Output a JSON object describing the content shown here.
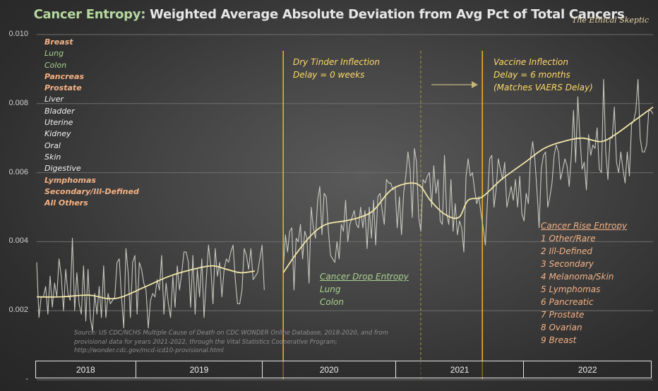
{
  "header": {
    "title_highlight": "Cancer Entropy:",
    "title_rest": " Weighted Average Absolute Deviation from Avg Pct of Total Cancers",
    "brand": "The Ethical Skeptic"
  },
  "legend": [
    {
      "label": "Breast",
      "style": "orange"
    },
    {
      "label": "Lung",
      "style": "green"
    },
    {
      "label": "Colon",
      "style": "green"
    },
    {
      "label": "Pancreas",
      "style": "orange"
    },
    {
      "label": "Prostate",
      "style": "orange"
    },
    {
      "label": "Liver",
      "style": "white"
    },
    {
      "label": "Bladder",
      "style": "white"
    },
    {
      "label": "Uterine",
      "style": "white"
    },
    {
      "label": "Kidney",
      "style": "white"
    },
    {
      "label": "Oral",
      "style": "white"
    },
    {
      "label": "Skin",
      "style": "white"
    },
    {
      "label": "Digestive",
      "style": "white"
    },
    {
      "label": "Lymphomas",
      "style": "orange"
    },
    {
      "label": "Secondary/Ill-Defined",
      "style": "orange"
    },
    {
      "label": "All Others",
      "style": "orange"
    }
  ],
  "annotations": {
    "dry_tinder": [
      "Dry Tinder Inflection",
      "Delay = 0 weeks"
    ],
    "vaccine": [
      "Vaccine Inflection",
      "Delay = 6 months",
      "(Matches VAERS Delay)"
    ],
    "drop_title": "Cancer Drop Entropy",
    "drop_items": [
      "Lung",
      "Colon"
    ],
    "rise_title": "Cancer Rise Entropy",
    "rise_items": [
      "1 Other/Rare",
      "2 Ill-Defined",
      "3 Secondary",
      "4 Melanoma/Skin",
      "5 Lymphomas",
      "6 Pancreatic",
      "7 Prostate",
      "8 Ovarian",
      "9 Breast"
    ],
    "source": [
      "Source: US CDC/NCHS Multiple Cause of Death on CDC WONDER Online Database, 2018-2020, and from",
      "provisional data for years 2021-2022, through the Vital Statistics Cooperative Program;",
      "http://wonder.cdc.gov/mcd-icd10-provisional.html"
    ]
  },
  "colors": {
    "weekly_line": "#c8c8c0",
    "trend_line": "#f3e7a8",
    "inflection_line": "#e8b21e",
    "dashed_line": "#a8984c",
    "arrow": "#c4b67c",
    "grid": "#6e6e6e"
  },
  "chart_data": {
    "type": "line",
    "title": "Cancer Entropy: Weighted Average Absolute Deviation from Avg Pct of Total Cancers",
    "xlabel": "",
    "ylabel": "",
    "ylim": [
      0,
      0.01
    ],
    "yticks": [
      "0.010",
      "0.008",
      "0.006",
      "0.004",
      "0.002",
      "-"
    ],
    "ytick_values": [
      0.01,
      0.008,
      0.006,
      0.004,
      0.002,
      0
    ],
    "grid": true,
    "x_unit": "week",
    "x_range_weeks": [
      0,
      260
    ],
    "year_bands": [
      {
        "label": "2018",
        "start_week": 0,
        "end_week": 42
      },
      {
        "label": "2019",
        "start_week": 42,
        "end_week": 96
      },
      {
        "label": "2020",
        "start_week": 96,
        "end_week": 152
      },
      {
        "label": "2021",
        "start_week": 152,
        "end_week": 206
      },
      {
        "label": "2022",
        "start_week": 206,
        "end_week": 260
      }
    ],
    "vertical_markers": [
      {
        "name": "Dry Tinder Inflection",
        "week": 104,
        "style": "solid"
      },
      {
        "name": "2021 start",
        "week": 162,
        "style": "dashed"
      },
      {
        "name": "Vaccine Inflection",
        "week": 188,
        "style": "solid"
      }
    ],
    "series": [
      {
        "name": "Weekly entropy",
        "segments": [
          {
            "start_week": 0,
            "values": [
              0.0034,
              0.0018,
              0.0024,
              0.0024,
              0.0027,
              0.0019,
              0.003,
              0.0021,
              0.0028,
              0.0024,
              0.0035,
              0.003,
              0.002,
              0.0032,
              0.0025,
              0.0023,
              0.0041,
              0.002,
              0.0031,
              0.0022,
              0.0019,
              0.0033,
              0.0017,
              0.0032,
              0.0018,
              0.0014,
              0.0025,
              0.0019,
              0.0027,
              0.0018,
              0.0033,
              0.0018,
              0.0025,
              0.0022,
              0.0023,
              0.0024,
              0.0034,
              0.0035,
              0.0024,
              0.0015,
              0.0038,
              0.0031,
              0.0018,
              0.0034,
              0.0036,
              0.0019,
              0.0034,
              0.0032,
              0.0028,
              0.0026,
              0.0015,
              0.0023,
              0.0025,
              0.0024,
              0.0029,
              0.0026,
              0.0036,
              0.0019,
              0.0028,
              0.0022,
              0.0018,
              0.003,
              0.0021,
              0.0033,
              0.0026,
              0.0031,
              0.0037,
              0.0037,
              0.0034,
              0.0021,
              0.0036,
              0.0019,
              0.0032,
              0.0024,
              0.0035,
              0.0018,
              0.0029,
              0.0039,
              0.0033,
              0.0022,
              0.0038,
              0.003,
              0.0034,
              0.0024,
              0.0032,
              0.0035,
              0.0034,
              0.0037,
              0.0039,
              0.0029,
              0.0022,
              0.0022,
              0.0026,
              0.0038,
              0.0036,
              0.0032,
              0.0038,
              0.0029,
              0.003,
              0.0031,
              0.0035,
              0.0039,
              0.0026
            ]
          },
          {
            "start_week": 104,
            "values": [
              0.0032,
              0.0042,
              0.0037,
              0.0043,
              0.0044,
              0.0026,
              0.0041,
              0.004,
              0.0045,
              0.0035,
              0.0043,
              0.0041,
              0.0028,
              0.005,
              0.0044,
              0.0041,
              0.0052,
              0.0056,
              0.0042,
              0.0054,
              0.0053,
              0.0043,
              0.0036,
              0.0035,
              0.0034,
              0.004,
              0.0035,
              0.0045,
              0.0043,
              0.0052,
              0.004,
              0.0045,
              0.0047,
              0.0049,
              0.0045,
              0.0044,
              0.005,
              0.0044,
              0.0049,
              0.0038,
              0.005,
              0.0041,
              0.0052,
              0.0039,
              0.0053,
              0.0054,
              0.0049,
              0.0045,
              0.0058,
              0.0057,
              0.0057,
              0.0055,
              0.0056,
              0.0044,
              0.0053,
              0.0042,
              0.0054,
              0.0059,
              0.0066,
              0.0061,
              0.0047,
              0.0067,
              0.0063,
              0.0047,
              0.0043,
              0.0058,
              0.0057,
              0.0059,
              0.006,
              0.005,
              0.0062,
              0.0054,
              0.0058,
              0.0046,
              0.0045,
              0.0065,
              0.0048,
              0.0045,
              0.0058,
              0.0043,
              0.0051,
              0.0042,
              0.0046,
              0.0044,
              0.0037,
              0.0059,
              0.0064,
              0.0059,
              0.006,
              0.0055,
              0.0051,
              0.0053,
              0.0048,
              0.0044,
              0.0039,
              0.0052,
              0.0064,
              0.0065,
              0.005,
              0.0055,
              0.0064,
              0.0061,
              0.0058,
              0.0063,
              0.005,
              0.0053,
              0.0056,
              0.0052,
              0.0058,
              0.005,
              0.0059,
              0.0048,
              0.0046,
              0.0054,
              0.0051,
              0.0064,
              0.0069,
              0.0064,
              0.0055,
              0.0044,
              0.0061,
              0.0065,
              0.0066,
              0.005,
              0.0053,
              0.0057,
              0.0065,
              0.0068,
              0.0066,
              0.0058,
              0.0061,
              0.0064,
              0.0062,
              0.0056,
              0.0065,
              0.0078,
              0.0063,
              0.0082,
              0.007,
              0.0061,
              0.0063,
              0.0055,
              0.0071,
              0.0065,
              0.0068,
              0.0067,
              0.0073,
              0.0061,
              0.006,
              0.0087,
              0.0066,
              0.0058,
              0.007,
              0.007,
              0.0079,
              0.0063,
              0.006,
              0.0066,
              0.0061,
              0.0057,
              0.0066,
              0.0059,
              0.0074,
              0.0075,
              0.0078,
              0.0087,
              0.007,
              0.0066,
              0.0066,
              0.0068,
              0.0078,
              0.0078,
              0.0077
            ]
          }
        ]
      },
      {
        "name": "Smoothed trend",
        "segments": [
          {
            "start_week": 0,
            "points": [
              [
                0,
                0.0024
              ],
              [
                10,
                0.0024
              ],
              [
                22,
                0.00245
              ],
              [
                30,
                0.00235
              ],
              [
                36,
                0.0024
              ],
              [
                46,
                0.0027
              ],
              [
                56,
                0.003
              ],
              [
                66,
                0.0032
              ],
              [
                74,
                0.0033
              ],
              [
                80,
                0.0032
              ],
              [
                86,
                0.0031
              ],
              [
                92,
                0.00315
              ]
            ]
          },
          {
            "start_week": 104,
            "points": [
              [
                104,
                0.0031
              ],
              [
                110,
                0.0037
              ],
              [
                116,
                0.0042
              ],
              [
                122,
                0.0045
              ],
              [
                130,
                0.0046
              ],
              [
                136,
                0.0047
              ],
              [
                142,
                0.0049
              ],
              [
                148,
                0.0054
              ],
              [
                152,
                0.0056
              ],
              [
                158,
                0.0057
              ],
              [
                162,
                0.0056
              ],
              [
                166,
                0.0052
              ],
              [
                172,
                0.0048
              ],
              [
                178,
                0.0047
              ],
              [
                182,
                0.0052
              ],
              [
                188,
                0.0053
              ],
              [
                196,
                0.0058
              ],
              [
                206,
                0.0063
              ],
              [
                214,
                0.0067
              ],
              [
                222,
                0.0069
              ],
              [
                230,
                0.007
              ],
              [
                238,
                0.0069
              ],
              [
                244,
                0.0071
              ],
              [
                252,
                0.0075
              ],
              [
                260,
                0.0079
              ]
            ]
          }
        ]
      }
    ]
  }
}
